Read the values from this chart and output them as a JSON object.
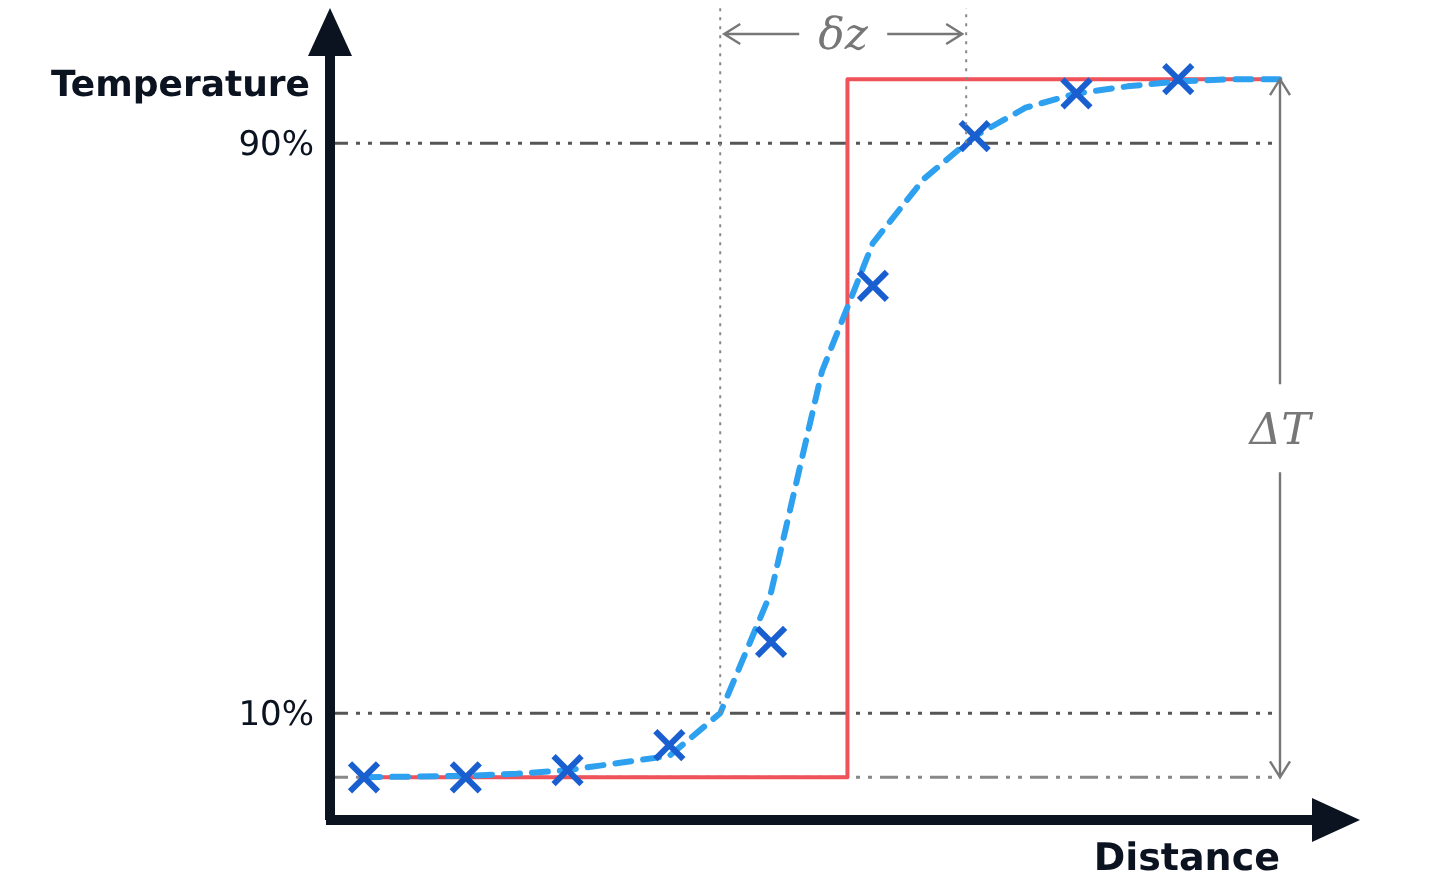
{
  "chart_data": {
    "type": "line",
    "xlabel": "Distance",
    "ylabel": "Temperature",
    "categories": [
      null,
      null,
      null,
      null,
      null,
      null,
      null,
      null,
      null,
      null,
      null,
      null,
      null,
      null,
      null,
      null,
      null,
      null,
      null
    ],
    "ylim": [
      -5,
      109
    ],
    "yticks": [
      {
        "value": 10,
        "label": "10%"
      },
      {
        "value": 90,
        "label": "90%"
      }
    ],
    "tick_labels": "y",
    "series": [
      {
        "type": "step",
        "color": "#f0525a",
        "line_style": "solid",
        "values": [
          1,
          1,
          1,
          1,
          1,
          1,
          1,
          1,
          1,
          1,
          99,
          99,
          99,
          99,
          99,
          99,
          99,
          99,
          99
        ]
      },
      {
        "color": "#2ea0f0",
        "line_style": "dashed",
        "values": [
          1,
          1.1,
          1.2,
          1.5,
          2,
          3,
          4,
          10,
          27,
          58,
          76,
          85,
          91,
          95,
          97,
          98,
          98.7,
          99,
          99
        ]
      },
      {
        "type": "scatter",
        "color": "#1a5fd0",
        "marker": "cross",
        "values": [
          1,
          null,
          1,
          null,
          2,
          null,
          5.5,
          null,
          20,
          null,
          70,
          null,
          91,
          null,
          97,
          null,
          99,
          null,
          null
        ]
      }
    ],
    "ref_lines": [
      {
        "axis": "y",
        "value": 90,
        "color": "#555555",
        "line_style": "dashed"
      },
      {
        "axis": "y",
        "value": 10,
        "color": "#555555",
        "line_style": "dashed"
      },
      {
        "axis": "y",
        "value": 1,
        "color": "#888888",
        "line_style": "dashed"
      }
    ],
    "annotations": [
      "δz",
      "ΔT"
    ]
  }
}
